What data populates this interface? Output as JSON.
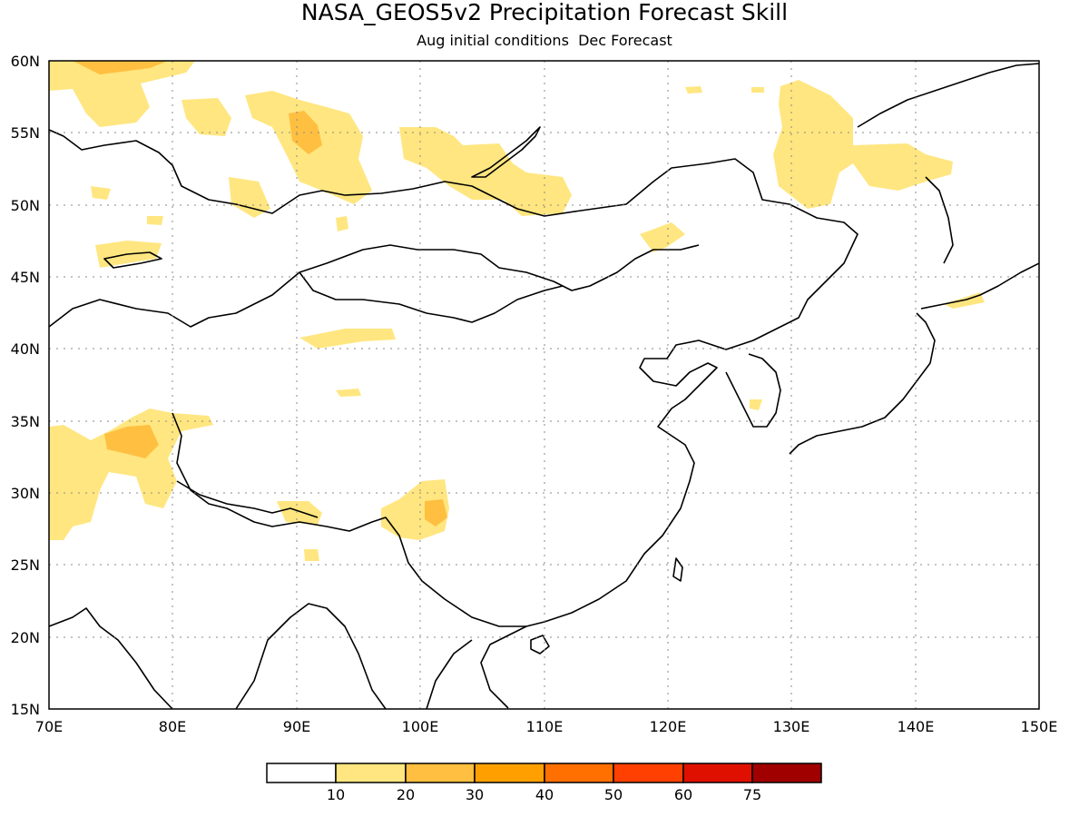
{
  "title": "NASA_GEOS5v2 Precipitation Forecast Skill",
  "subtitle": "Aug initial conditions  Dec Forecast",
  "map": {
    "lon_range": [
      70,
      150
    ],
    "lat_range": [
      15,
      60
    ],
    "lon_ticks": [
      "70E",
      "80E",
      "90E",
      "100E",
      "110E",
      "120E",
      "130E",
      "140E",
      "150E"
    ],
    "lat_ticks": [
      "15N",
      "20N",
      "25N",
      "30N",
      "35N",
      "40N",
      "45N",
      "50N",
      "55N",
      "60N"
    ],
    "grid": true
  },
  "colorbar": {
    "labels": [
      "10",
      "20",
      "30",
      "40",
      "50",
      "60",
      "75"
    ],
    "colors": [
      "#ffffff",
      "#ffe680",
      "#ffbf40",
      "#ffa000",
      "#ff7000",
      "#ff4000",
      "#e01000",
      "#a00000"
    ]
  }
}
